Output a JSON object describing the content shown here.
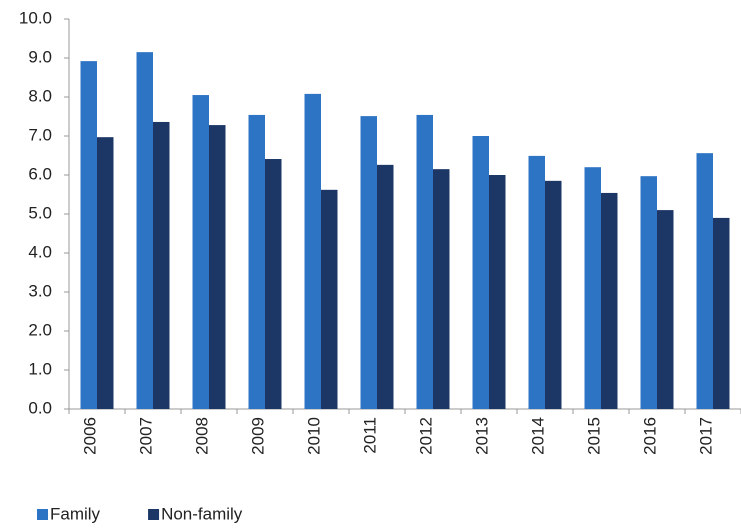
{
  "chart_data": {
    "type": "bar",
    "categories": [
      "2006",
      "2007",
      "2008",
      "2009",
      "2010",
      "2011",
      "2012",
      "2013",
      "2014",
      "2015",
      "2016",
      "2017"
    ],
    "series": [
      {
        "name": "Family",
        "color": "#2e74c4",
        "values": [
          8.92,
          9.15,
          8.05,
          7.54,
          8.08,
          7.51,
          7.54,
          7.0,
          6.49,
          6.2,
          5.97,
          6.56
        ]
      },
      {
        "name": "Non-family",
        "color": "#1c3766",
        "values": [
          6.97,
          7.36,
          7.28,
          6.41,
          5.62,
          6.26,
          6.15,
          6.0,
          5.85,
          5.54,
          5.1,
          4.9
        ]
      }
    ],
    "ylim": [
      0,
      10
    ],
    "yticks": [
      {
        "value": 0,
        "label": "0.0"
      },
      {
        "value": 1,
        "label": "1.0"
      },
      {
        "value": 2,
        "label": "2.0"
      },
      {
        "value": 3,
        "label": "3.0"
      },
      {
        "value": 4,
        "label": "4.0"
      },
      {
        "value": 5,
        "label": "5.0"
      },
      {
        "value": 6,
        "label": "6.0"
      },
      {
        "value": 7,
        "label": "7.0"
      },
      {
        "value": 8,
        "label": "8.0"
      },
      {
        "value": 9,
        "label": "9.0"
      },
      {
        "value": 10,
        "label": "10.0"
      }
    ],
    "grid": false,
    "legend": "bottom-left"
  }
}
